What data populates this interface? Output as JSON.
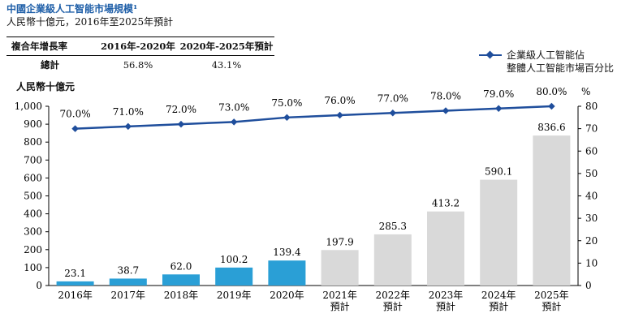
{
  "header": {
    "title": "中國企業級人工智能市場規模¹",
    "subtitle": "人民幣十億元，2016年至2025年預計"
  },
  "cagr_table": {
    "header": [
      "複合年增長率",
      "2016年-2020年",
      "2020年-2025年預計"
    ],
    "row": [
      "總計",
      "56.8%",
      "43.1%"
    ]
  },
  "unit_label": "人民幣十億元",
  "legend": {
    "line_label": "企業級人工智能佔\n整體人工智能市場百分比"
  },
  "chart_data": {
    "type": "bar",
    "categories": [
      "2016年",
      "2017年",
      "2018年",
      "2019年",
      "2020年",
      "2021年\n預計",
      "2022年\n預計",
      "2023年\n預計",
      "2024年\n預計",
      "2025年\n預計"
    ],
    "series": [
      {
        "values": [
          23.1,
          38.7,
          62.0,
          100.2,
          139.4,
          197.9,
          285.3,
          413.2,
          590.1,
          836.6
        ]
      },
      {
        "name": "企業級人工智能佔整體人工智能市場百分比",
        "type": "line",
        "values": [
          70.0,
          71.0,
          72.0,
          73.0,
          75.0,
          76.0,
          77.0,
          78.0,
          79.0,
          80.0
        ]
      }
    ],
    "bar_labels": [
      "23.1",
      "38.7",
      "62.0",
      "100.2",
      "139.4",
      "197.9",
      "285.3",
      "413.2",
      "590.1",
      "836.6"
    ],
    "line_labels": [
      "70.0%",
      "71.0%",
      "72.0%",
      "73.0%",
      "75.0%",
      "76.0%",
      "77.0%",
      "78.0%",
      "79.0%",
      "80.0%"
    ],
    "y_left": {
      "min": 0,
      "max": 1000,
      "ticks": [
        "0",
        "100",
        "200",
        "300",
        "400",
        "500",
        "600",
        "700",
        "800",
        "900",
        "1,000"
      ]
    },
    "y_right": {
      "min": 0,
      "max": 80,
      "ticks": [
        "0",
        "10",
        "20",
        "30",
        "40",
        "50",
        "60",
        "70",
        "80"
      ],
      "unit": "%"
    },
    "colors": {
      "actual_bar": "#2a9fd6",
      "forecast_bar": "#d9d9d9",
      "line": "#1f4e9c"
    },
    "actual_count": 5,
    "grid": false,
    "legend_position": "top-right"
  }
}
